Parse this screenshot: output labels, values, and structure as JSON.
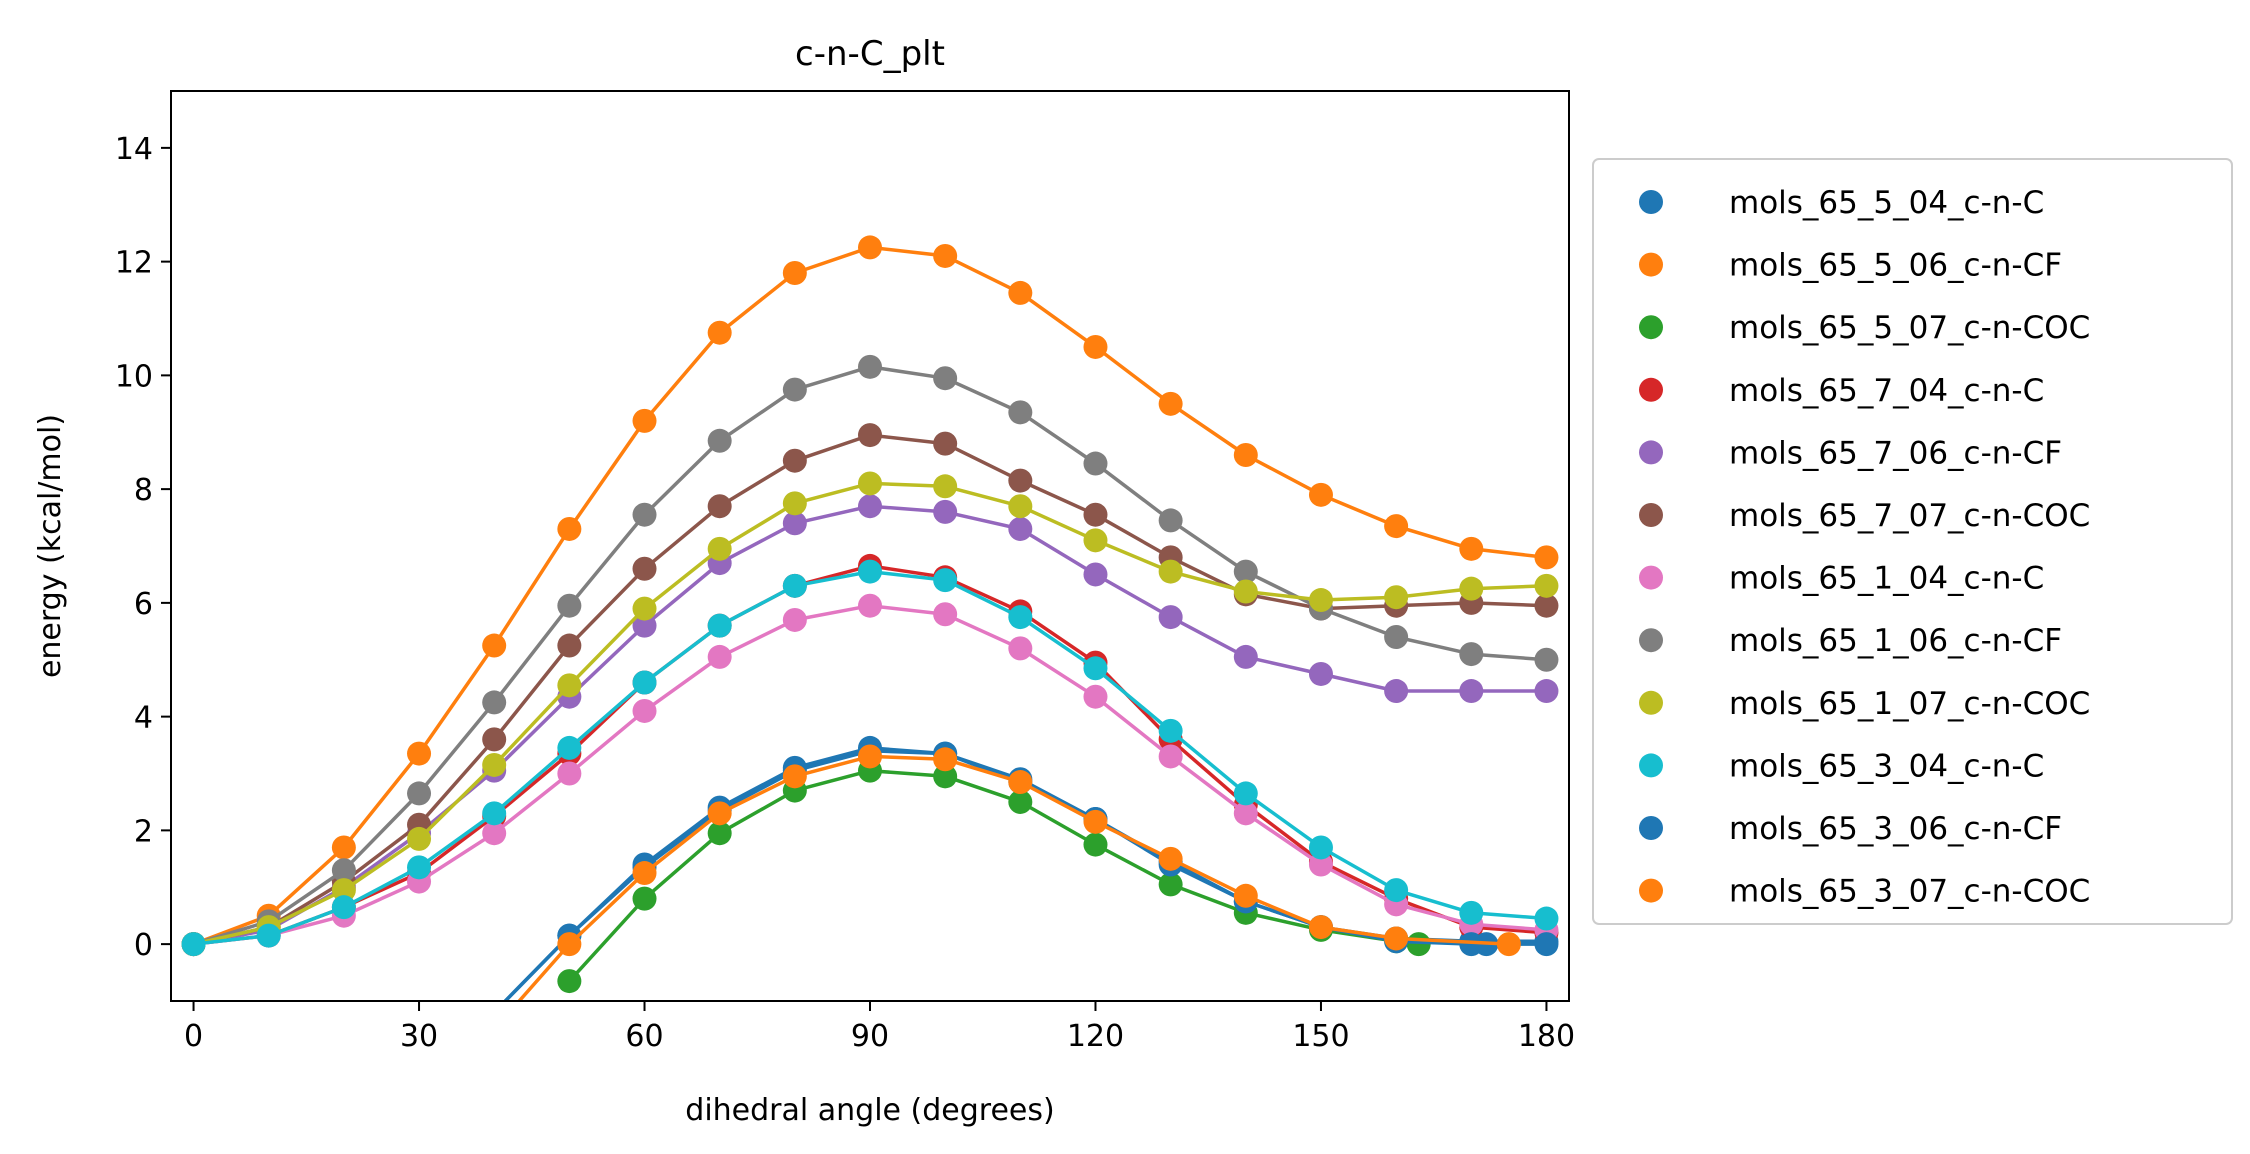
{
  "chart_data": {
    "type": "line",
    "title": "c-n-C_plt",
    "xlabel": "dihedral angle (degrees)",
    "ylabel": "energy (kcal/mol)",
    "xlim": [
      -3,
      183
    ],
    "ylim": [
      -1,
      15
    ],
    "xticks": [
      0,
      30,
      60,
      90,
      120,
      150,
      180
    ],
    "yticks": [
      0,
      2,
      4,
      6,
      8,
      10,
      12,
      14
    ],
    "grid": false,
    "legend_position": "right-outside",
    "series": [
      {
        "name": "mols_65_5_04_c-n-C",
        "color": "#1f77b4",
        "x": [
          40,
          50,
          60,
          70,
          80,
          90,
          100,
          110,
          120,
          130,
          140,
          150,
          160,
          170,
          180
        ],
        "y": [
          -1.2,
          0.15,
          1.35,
          2.35,
          3.05,
          3.4,
          3.35,
          2.85,
          2.2,
          1.45,
          0.75,
          0.3,
          0.1,
          0.05,
          0.05
        ]
      },
      {
        "name": "mols_65_5_06_c-n-CF",
        "color": "#ff7f0e",
        "x": [
          0,
          10,
          20,
          30,
          40,
          50,
          60,
          70,
          80,
          90,
          100,
          110,
          120,
          130,
          140,
          150,
          160,
          170,
          180
        ],
        "y": [
          0.0,
          0.5,
          1.7,
          3.35,
          5.25,
          7.3,
          9.2,
          10.75,
          11.8,
          12.25,
          12.1,
          11.45,
          10.5,
          9.5,
          8.6,
          7.9,
          7.35,
          6.95,
          6.8
        ]
      },
      {
        "name": "mols_65_5_07_c-n-COC",
        "color": "#2ca02c",
        "x": [
          50,
          60,
          70,
          80,
          90,
          100,
          110,
          120,
          130,
          140,
          150,
          160,
          163
        ],
        "y": [
          -0.65,
          0.8,
          1.95,
          2.7,
          3.05,
          2.95,
          2.5,
          1.75,
          1.05,
          0.55,
          0.25,
          0.05,
          0.0
        ]
      },
      {
        "name": "mols_65_7_04_c-n-C",
        "color": "#d62728",
        "x": [
          0,
          10,
          20,
          30,
          40,
          50,
          60,
          70,
          80,
          90,
          100,
          110,
          120,
          130,
          140,
          150,
          160,
          170,
          180
        ],
        "y": [
          0.0,
          0.15,
          0.65,
          1.25,
          2.25,
          3.35,
          4.6,
          5.6,
          6.3,
          6.65,
          6.45,
          5.85,
          4.95,
          3.6,
          2.45,
          1.45,
          0.8,
          0.3,
          0.2
        ]
      },
      {
        "name": "mols_65_7_06_c-n-CF",
        "color": "#9467bd",
        "x": [
          0,
          10,
          20,
          30,
          40,
          50,
          60,
          70,
          80,
          90,
          100,
          110,
          120,
          130,
          140,
          150,
          160,
          170,
          180
        ],
        "y": [
          0.0,
          0.25,
          1.0,
          1.95,
          3.05,
          4.35,
          5.6,
          6.7,
          7.4,
          7.7,
          7.6,
          7.3,
          6.5,
          5.75,
          5.05,
          4.75,
          4.45,
          4.45,
          4.45
        ]
      },
      {
        "name": "mols_65_7_07_c-n-COC",
        "color": "#8c564b",
        "x": [
          0,
          10,
          20,
          30,
          40,
          50,
          60,
          70,
          80,
          90,
          100,
          110,
          120,
          130,
          140,
          150,
          160,
          170,
          180
        ],
        "y": [
          0.0,
          0.3,
          1.1,
          2.1,
          3.6,
          5.25,
          6.6,
          7.7,
          8.5,
          8.95,
          8.8,
          8.15,
          7.55,
          6.8,
          6.15,
          5.9,
          5.95,
          6.0,
          5.95
        ]
      },
      {
        "name": "mols_65_1_04_c-n-C",
        "color": "#e377c2",
        "x": [
          0,
          10,
          20,
          30,
          40,
          50,
          60,
          70,
          80,
          90,
          100,
          110,
          120,
          130,
          140,
          150,
          160,
          170,
          180
        ],
        "y": [
          0.0,
          0.15,
          0.5,
          1.1,
          1.95,
          3.0,
          4.1,
          5.05,
          5.7,
          5.95,
          5.8,
          5.2,
          4.35,
          3.3,
          2.3,
          1.4,
          0.7,
          0.35,
          0.25
        ]
      },
      {
        "name": "mols_65_1_06_c-n-CF",
        "color": "#7f7f7f",
        "x": [
          0,
          10,
          20,
          30,
          40,
          50,
          60,
          70,
          80,
          90,
          100,
          110,
          120,
          130,
          140,
          150,
          160,
          170,
          180
        ],
        "y": [
          0.0,
          0.4,
          1.3,
          2.65,
          4.25,
          5.95,
          7.55,
          8.85,
          9.75,
          10.15,
          9.95,
          9.35,
          8.45,
          7.45,
          6.55,
          5.9,
          5.4,
          5.1,
          5.0
        ]
      },
      {
        "name": "mols_65_1_07_c-n-COC",
        "color": "#bcbd22",
        "x": [
          0,
          10,
          20,
          30,
          40,
          50,
          60,
          70,
          80,
          90,
          100,
          110,
          120,
          130,
          140,
          150,
          160,
          170,
          180
        ],
        "y": [
          0.0,
          0.3,
          0.95,
          1.85,
          3.15,
          4.55,
          5.9,
          6.95,
          7.75,
          8.1,
          8.05,
          7.7,
          7.1,
          6.55,
          6.2,
          6.05,
          6.1,
          6.25,
          6.3
        ]
      },
      {
        "name": "mols_65_3_04_c-n-C",
        "color": "#17becf",
        "x": [
          0,
          10,
          20,
          30,
          40,
          50,
          60,
          70,
          80,
          90,
          100,
          110,
          120,
          130,
          140,
          150,
          160,
          170,
          180
        ],
        "y": [
          0.0,
          0.15,
          0.65,
          1.35,
          2.3,
          3.45,
          4.6,
          5.6,
          6.3,
          6.55,
          6.4,
          5.75,
          4.85,
          3.75,
          2.65,
          1.7,
          0.95,
          0.55,
          0.45
        ]
      },
      {
        "name": "mols_65_3_06_c-n-CF",
        "color": "#1f77b4",
        "x": [
          40,
          50,
          60,
          70,
          80,
          90,
          100,
          110,
          120,
          130,
          140,
          150,
          160,
          170,
          172,
          180
        ],
        "y": [
          -1.2,
          0.15,
          1.4,
          2.4,
          3.1,
          3.45,
          3.35,
          2.9,
          2.2,
          1.4,
          0.75,
          0.3,
          0.05,
          0.0,
          0.0,
          0.0
        ]
      },
      {
        "name": "mols_65_3_07_c-n-COC",
        "color": "#ff7f0e",
        "x": [
          40,
          50,
          60,
          70,
          80,
          90,
          100,
          110,
          120,
          130,
          140,
          150,
          160,
          175
        ],
        "y": [
          -1.5,
          0.0,
          1.25,
          2.3,
          2.95,
          3.3,
          3.25,
          2.85,
          2.15,
          1.5,
          0.85,
          0.3,
          0.1,
          0.0
        ]
      }
    ]
  }
}
